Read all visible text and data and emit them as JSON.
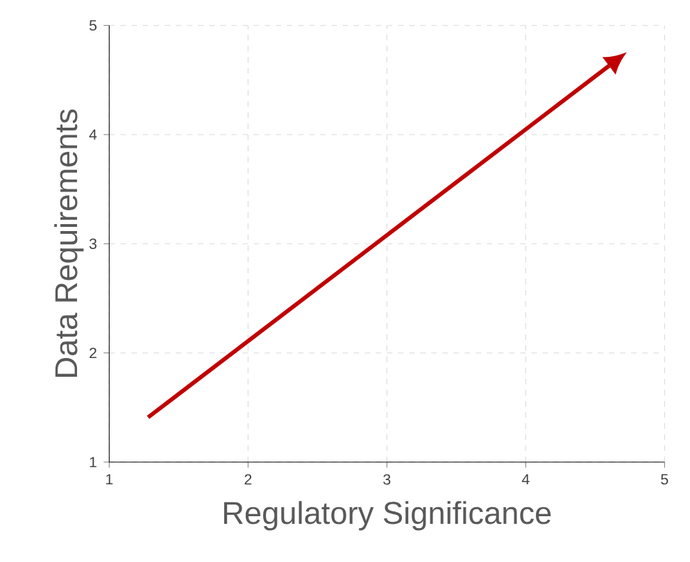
{
  "chart_data": {
    "type": "line",
    "xlabel": "Regulatory Significance",
    "ylabel": "Data Requirements",
    "xlim": [
      1,
      5
    ],
    "ylim": [
      1,
      5
    ],
    "xticks": [
      1,
      2,
      3,
      4,
      5
    ],
    "yticks": [
      1,
      2,
      3,
      4,
      5
    ],
    "grid": true,
    "series": [
      {
        "color": "#c00000",
        "x": [
          1.28,
          4.6
        ],
        "values": [
          1.41,
          4.63
        ]
      }
    ]
  }
}
